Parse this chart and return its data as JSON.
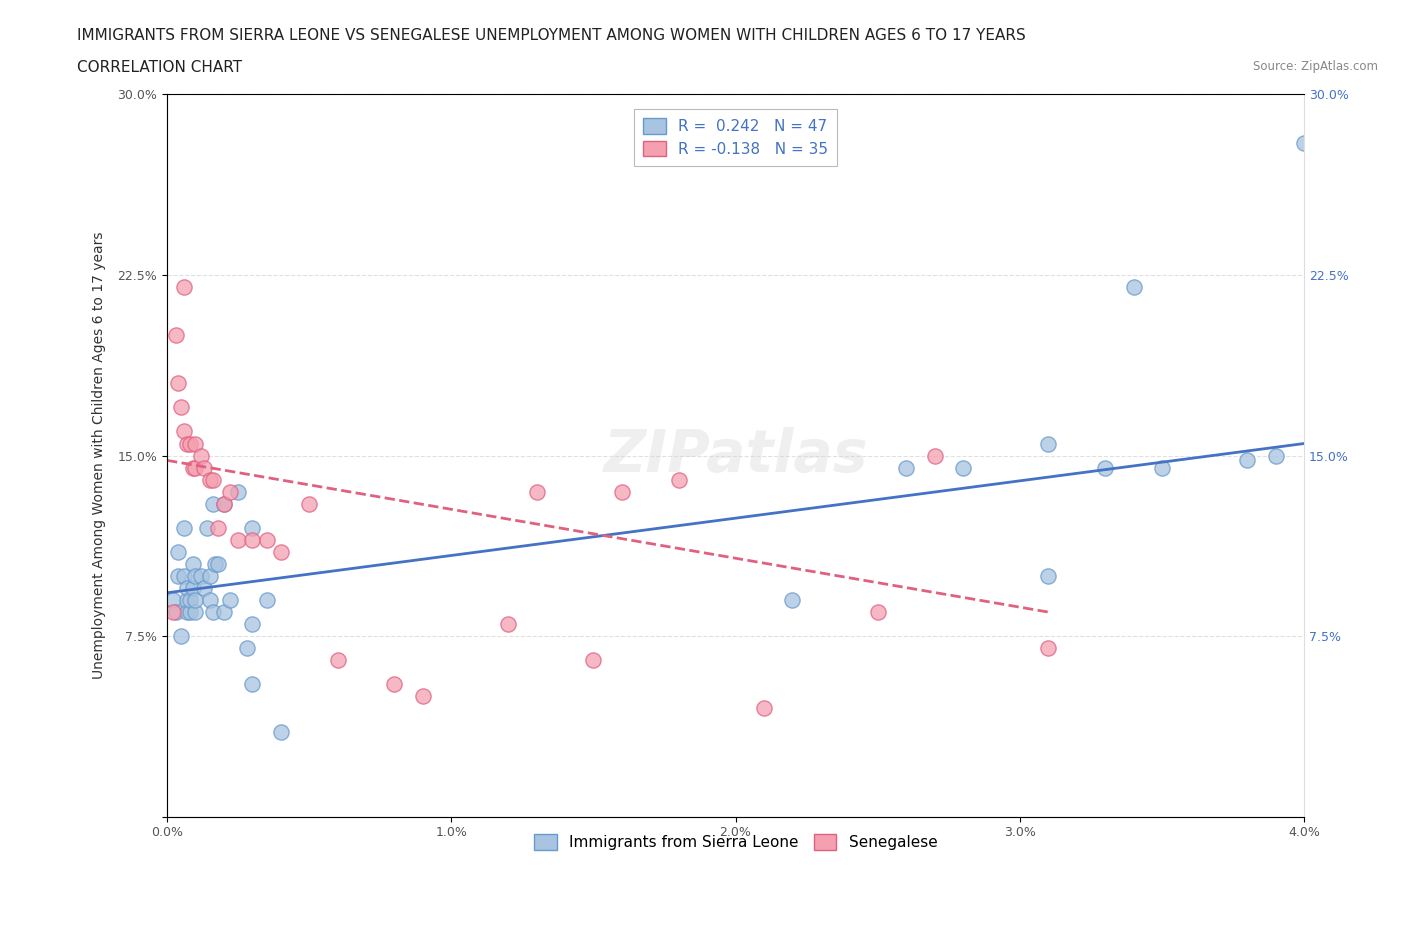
{
  "title_line1": "IMMIGRANTS FROM SIERRA LEONE VS SENEGALESE UNEMPLOYMENT AMONG WOMEN WITH CHILDREN AGES 6 TO 17 YEARS",
  "title_line2": "CORRELATION CHART",
  "source_text": "Source: ZipAtlas.com",
  "xlabel": "",
  "ylabel": "Unemployment Among Women with Children Ages 6 to 17 years",
  "xlim": [
    0.0,
    0.04
  ],
  "ylim": [
    0.0,
    0.3
  ],
  "xticks": [
    0.0,
    0.01,
    0.02,
    0.03,
    0.04
  ],
  "xtick_labels": [
    "0.0%",
    "1.0%",
    "2.0%",
    "3.0%",
    "4.0%"
  ],
  "yticks": [
    0.0,
    0.075,
    0.15,
    0.225,
    0.3
  ],
  "ytick_labels": [
    "",
    "7.5%",
    "15.0%",
    "22.5%",
    "30.0%"
  ],
  "background_color": "#ffffff",
  "grid_color": "#e0e0e0",
  "watermark": "ZIPatlas",
  "sierra_leone_x": [
    0.0002,
    0.0003,
    0.0004,
    0.0004,
    0.0005,
    0.0006,
    0.0006,
    0.0007,
    0.0007,
    0.0007,
    0.0008,
    0.0008,
    0.0009,
    0.0009,
    0.001,
    0.001,
    0.001,
    0.0012,
    0.0013,
    0.0014,
    0.0015,
    0.0015,
    0.0016,
    0.0016,
    0.0017,
    0.0018,
    0.002,
    0.002,
    0.0022,
    0.0025,
    0.0028,
    0.003,
    0.003,
    0.003,
    0.0035,
    0.004,
    0.022,
    0.026,
    0.028,
    0.031,
    0.031,
    0.033,
    0.034,
    0.035,
    0.038,
    0.039,
    0.04
  ],
  "sierra_leone_y": [
    0.09,
    0.085,
    0.1,
    0.11,
    0.075,
    0.1,
    0.12,
    0.085,
    0.09,
    0.095,
    0.085,
    0.09,
    0.095,
    0.105,
    0.085,
    0.09,
    0.1,
    0.1,
    0.095,
    0.12,
    0.09,
    0.1,
    0.085,
    0.13,
    0.105,
    0.105,
    0.085,
    0.13,
    0.09,
    0.135,
    0.07,
    0.055,
    0.12,
    0.08,
    0.09,
    0.035,
    0.09,
    0.145,
    0.145,
    0.155,
    0.1,
    0.145,
    0.22,
    0.145,
    0.148,
    0.15,
    0.28
  ],
  "sierra_leone_color": "#a8c4e0",
  "sierra_leone_edge": "#6699cc",
  "sierra_leone_R": 0.242,
  "sierra_leone_N": 47,
  "sierra_leone_trend_x": [
    0.0,
    0.04
  ],
  "sierra_leone_trend_y": [
    0.093,
    0.155
  ],
  "sierra_leone_trend_color": "#4472c4",
  "senegalese_x": [
    0.0002,
    0.0003,
    0.0004,
    0.0005,
    0.0006,
    0.0006,
    0.0007,
    0.0008,
    0.0009,
    0.001,
    0.001,
    0.0012,
    0.0013,
    0.0015,
    0.0016,
    0.0018,
    0.002,
    0.0022,
    0.0025,
    0.003,
    0.0035,
    0.004,
    0.005,
    0.006,
    0.008,
    0.009,
    0.012,
    0.013,
    0.015,
    0.016,
    0.018,
    0.021,
    0.025,
    0.027,
    0.031
  ],
  "senegalese_y": [
    0.085,
    0.2,
    0.18,
    0.17,
    0.16,
    0.22,
    0.155,
    0.155,
    0.145,
    0.155,
    0.145,
    0.15,
    0.145,
    0.14,
    0.14,
    0.12,
    0.13,
    0.135,
    0.115,
    0.115,
    0.115,
    0.11,
    0.13,
    0.065,
    0.055,
    0.05,
    0.08,
    0.135,
    0.065,
    0.135,
    0.14,
    0.045,
    0.085,
    0.15,
    0.07
  ],
  "senegalese_color": "#f4a0b0",
  "senegalese_edge": "#e06080",
  "senegalese_R": -0.138,
  "senegalese_N": 35,
  "senegalese_trend_x": [
    0.0,
    0.031
  ],
  "senegalese_trend_y": [
    0.148,
    0.085
  ],
  "senegalese_trend_color": "#e06080",
  "legend_entries": [
    "Immigrants from Sierra Leone",
    "Senegalese"
  ],
  "legend_R_color": "#4472c4",
  "title_fontsize": 11,
  "subtitle_fontsize": 11,
  "axis_label_fontsize": 10,
  "tick_fontsize": 9,
  "legend_fontsize": 11
}
